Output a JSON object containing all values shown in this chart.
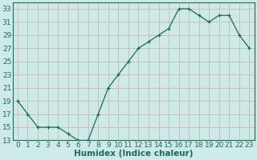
{
  "x": [
    0,
    1,
    2,
    3,
    4,
    5,
    6,
    7,
    8,
    9,
    10,
    11,
    12,
    13,
    14,
    15,
    16,
    17,
    18,
    19,
    20,
    21,
    22,
    23
  ],
  "y": [
    19,
    17,
    15,
    15,
    15,
    14,
    13,
    13,
    17,
    21,
    23,
    25,
    27,
    28,
    29,
    30,
    33,
    33,
    32,
    31,
    32,
    32,
    29,
    27
  ],
  "line_color": "#1a6b5a",
  "marker": "+",
  "background_color": "#cde9e8",
  "grid_color": "#c8b8b8",
  "tick_color": "#1a6b5a",
  "label_color": "#1a6b5a",
  "xlabel": "Humidex (Indice chaleur)",
  "ylim": [
    13,
    34
  ],
  "yticks": [
    13,
    15,
    17,
    19,
    21,
    23,
    25,
    27,
    29,
    31,
    33
  ],
  "xticks": [
    0,
    1,
    2,
    3,
    4,
    5,
    6,
    7,
    8,
    9,
    10,
    11,
    12,
    13,
    14,
    15,
    16,
    17,
    18,
    19,
    20,
    21,
    22,
    23
  ],
  "font_size": 6.5,
  "xlabel_fontsize": 7.5
}
